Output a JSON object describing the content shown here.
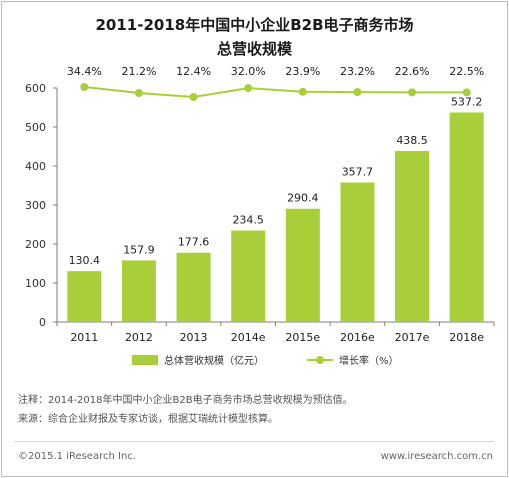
{
  "title_line1": "2011-2018年中国中小企业B2B电子商务市场",
  "title_line2": "总营收规模",
  "chart_data": {
    "type": "bar",
    "categories": [
      "2011",
      "2012",
      "2013",
      "2014e",
      "2015e",
      "2016e",
      "2017e",
      "2018e"
    ],
    "series": [
      {
        "name": "总体营收规模（亿元）",
        "type": "bar",
        "values": [
          130.4,
          157.9,
          177.6,
          234.5,
          290.4,
          357.7,
          438.5,
          537.2
        ]
      },
      {
        "name": "增长率（%）",
        "type": "line",
        "values": [
          34.4,
          21.2,
          12.4,
          32.0,
          23.9,
          23.2,
          22.6,
          22.5
        ],
        "value_labels": [
          "34.4%",
          "21.2%",
          "12.4%",
          "32.0%",
          "23.9%",
          "23.2%",
          "22.6%",
          "22.5%"
        ]
      }
    ],
    "ylim": [
      0,
      600
    ],
    "yticks": [
      "0",
      "100",
      "200",
      "300",
      "400",
      "500",
      "600"
    ],
    "grid": false,
    "legend": "bottom",
    "colors": {
      "bar": "#a8cf3a",
      "line": "#a8cf3a"
    }
  },
  "notes": {
    "note1": "注释：2014-2018年中国中小企业B2B电子商务市场总营收规模为预估值。",
    "note2": "来源：综合企业财报及专家访谈，根据艾瑞统计模型核算。"
  },
  "footer": {
    "copyright": "©2015.1 iResearch Inc.",
    "website": "www.iresearch.com.cn"
  }
}
